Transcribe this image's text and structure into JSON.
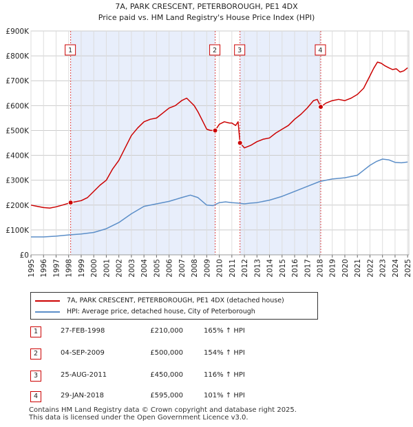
{
  "chart_data": {
    "type": "line",
    "title": "7A, PARK CRESCENT, PETERBOROUGH, PE1 4DX",
    "subtitle": "Price paid vs. HM Land Registry's House Price Index (HPI)",
    "xlim": [
      1995,
      2025.1
    ],
    "ylim": [
      0,
      900000
    ],
    "x_ticks": [
      1995,
      1996,
      1997,
      1998,
      1999,
      2000,
      2001,
      2002,
      2003,
      2004,
      2005,
      2006,
      2007,
      2008,
      2009,
      2010,
      2011,
      2012,
      2013,
      2014,
      2015,
      2016,
      2017,
      2018,
      2019,
      2020,
      2021,
      2022,
      2023,
      2024,
      2025
    ],
    "y_ticks": [
      {
        "value": 0,
        "label": "£0"
      },
      {
        "value": 100000,
        "label": "£100K"
      },
      {
        "value": 200000,
        "label": "£200K"
      },
      {
        "value": 300000,
        "label": "£300K"
      },
      {
        "value": 400000,
        "label": "£400K"
      },
      {
        "value": 500000,
        "label": "£500K"
      },
      {
        "value": 600000,
        "label": "£600K"
      },
      {
        "value": 700000,
        "label": "£700K"
      },
      {
        "value": 800000,
        "label": "£800K"
      },
      {
        "value": 900000,
        "label": "£900K"
      }
    ],
    "shaded_ranges": [
      [
        1998.16,
        2009.67
      ],
      [
        2011.65,
        2018.08
      ]
    ],
    "series": [
      {
        "name": "7A, PARK CRESCENT, PETERBOROUGH, PE1 4DX (detached house)",
        "color": "#cc0000",
        "x": [
          1995,
          1995.5,
          1996,
          1996.5,
          1997,
          1997.5,
          1998.16,
          1998.5,
          1999,
          1999.5,
          2000,
          2000.5,
          2001,
          2001.5,
          2002,
          2002.5,
          2003,
          2003.5,
          2004,
          2004.5,
          2005,
          2005.5,
          2006,
          2006.5,
          2007,
          2007.4,
          2007.7,
          2008,
          2008.3,
          2008.6,
          2009,
          2009.3,
          2009.67,
          2010,
          2010.4,
          2010.8,
          2011,
          2011.3,
          2011.5,
          2011.65,
          2012,
          2012.5,
          2013,
          2013.5,
          2014,
          2014.5,
          2015,
          2015.5,
          2016,
          2016.5,
          2017,
          2017.5,
          2017.8,
          2018.08,
          2018.5,
          2019,
          2019.5,
          2020,
          2020.5,
          2021,
          2021.5,
          2022,
          2022.3,
          2022.6,
          2022.9,
          2023.2,
          2023.5,
          2023.8,
          2024.1,
          2024.4,
          2024.7,
          2025
        ],
        "values": [
          200000,
          195000,
          190000,
          188000,
          193000,
          200000,
          210000,
          213000,
          218000,
          230000,
          255000,
          280000,
          300000,
          345000,
          380000,
          430000,
          480000,
          510000,
          535000,
          545000,
          550000,
          570000,
          590000,
          600000,
          620000,
          630000,
          615000,
          600000,
          575000,
          545000,
          505000,
          500000,
          500000,
          525000,
          535000,
          530000,
          530000,
          520000,
          535000,
          450000,
          430000,
          440000,
          455000,
          465000,
          470000,
          490000,
          505000,
          520000,
          545000,
          565000,
          590000,
          620000,
          625000,
          595000,
          610000,
          620000,
          625000,
          620000,
          630000,
          645000,
          670000,
          720000,
          750000,
          775000,
          770000,
          760000,
          752000,
          745000,
          748000,
          735000,
          740000,
          752000
        ]
      },
      {
        "name": "HPI: Average price, detached house, City of Peterborough",
        "color": "#5b8ec8",
        "x": [
          1995,
          1996,
          1997,
          1998,
          1999,
          2000,
          2001,
          2002,
          2003,
          2004,
          2005,
          2006,
          2007,
          2007.7,
          2008.3,
          2009,
          2009.5,
          2010,
          2010.5,
          2011,
          2011.5,
          2012,
          2012.5,
          2013,
          2014,
          2015,
          2016,
          2017,
          2018,
          2019,
          2020,
          2021,
          2021.5,
          2022,
          2022.5,
          2023,
          2023.5,
          2024,
          2024.5,
          2025
        ],
        "values": [
          72000,
          72000,
          75000,
          80000,
          84000,
          90000,
          105000,
          130000,
          165000,
          195000,
          205000,
          215000,
          230000,
          240000,
          230000,
          200000,
          198000,
          210000,
          213000,
          210000,
          208000,
          205000,
          208000,
          210000,
          220000,
          235000,
          255000,
          275000,
          295000,
          305000,
          310000,
          320000,
          340000,
          360000,
          375000,
          385000,
          382000,
          372000,
          370000,
          373000
        ]
      }
    ],
    "markers": [
      {
        "label": "1",
        "x": 1998.16,
        "y": 210000
      },
      {
        "label": "2",
        "x": 2009.67,
        "y": 500000
      },
      {
        "label": "3",
        "x": 2011.65,
        "y": 450000
      },
      {
        "label": "4",
        "x": 2018.08,
        "y": 595000
      }
    ]
  },
  "legend": {
    "items": [
      {
        "label": "7A, PARK CRESCENT, PETERBOROUGH, PE1 4DX (detached house)",
        "color": "#cc0000"
      },
      {
        "label": "HPI: Average price, detached house, City of Peterborough",
        "color": "#5b8ec8"
      }
    ]
  },
  "transactions": [
    {
      "num": "1",
      "date": "27-FEB-1998",
      "price": "£210,000",
      "hpi": "165% ↑ HPI"
    },
    {
      "num": "2",
      "date": "04-SEP-2009",
      "price": "£500,000",
      "hpi": "154% ↑ HPI"
    },
    {
      "num": "3",
      "date": "25-AUG-2011",
      "price": "£450,000",
      "hpi": "116% ↑ HPI"
    },
    {
      "num": "4",
      "date": "29-JAN-2018",
      "price": "£595,000",
      "hpi": "101% ↑ HPI"
    }
  ],
  "footer": {
    "line1": "Contains HM Land Registry data © Crown copyright and database right 2025.",
    "line2": "This data is licensed under the Open Government Licence v3.0."
  }
}
